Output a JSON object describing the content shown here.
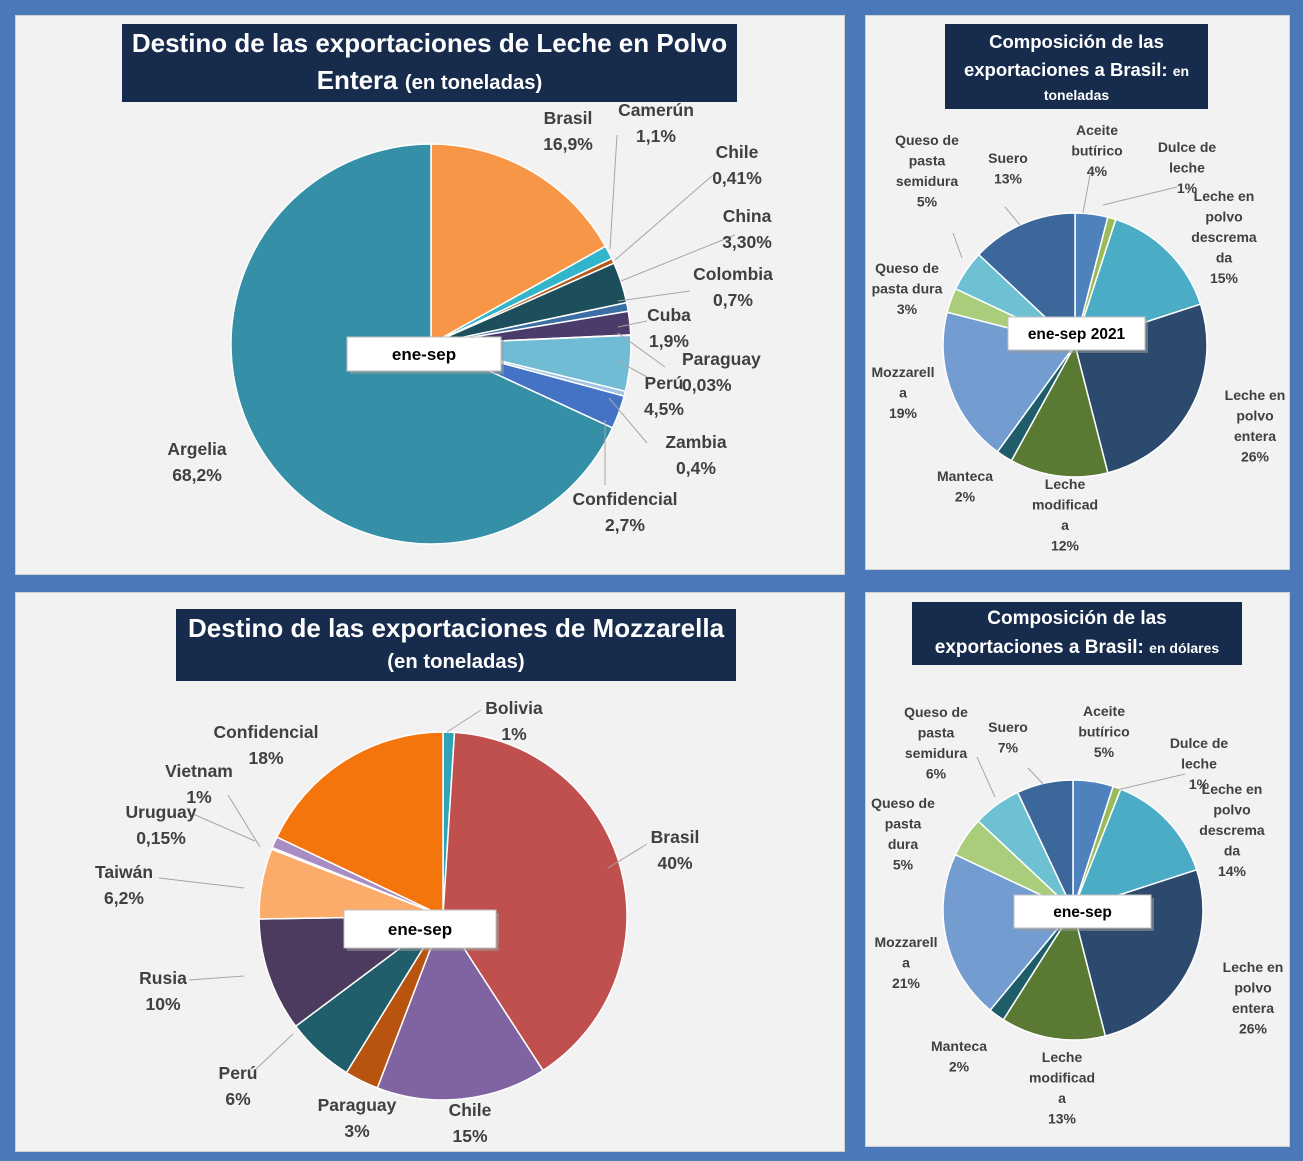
{
  "colors": {
    "frame": "#4a78b8",
    "panel": "#f2f2f2",
    "title_bg": "#172b4d",
    "label_text": "#404040"
  },
  "chart_data": [
    {
      "id": "leche_polvo",
      "type": "pie",
      "title": "Destino de las exportaciones de Leche en Polvo Entera",
      "title_main_1": "Destino de las exportaciones de Leche en Polvo",
      "title_main_2": "Entera",
      "title_small": "(en toneladas)",
      "period_label": "ene-sep",
      "slices": [
        {
          "name": "Brasil",
          "value_label": "16,9%",
          "value": 16.9,
          "color": "#f79646"
        },
        {
          "name": "Camerún",
          "value_label": "1,1%",
          "value": 1.1,
          "color": "#31b6c9"
        },
        {
          "name": "Chile",
          "value_label": "0,41%",
          "value": 0.41,
          "color": "#b35a1a"
        },
        {
          "name": "China",
          "value_label": "3,30%",
          "value": 3.3,
          "color": "#1d4e5c"
        },
        {
          "name": "Colombia",
          "value_label": "0,7%",
          "value": 0.7,
          "color": "#3a6ea5"
        },
        {
          "name": "Cuba",
          "value_label": "1,9%",
          "value": 1.9,
          "color": "#4b3b6a"
        },
        {
          "name": "Paraguay",
          "value_label": "0,03%",
          "value": 0.03,
          "color": "#7d5e9e"
        },
        {
          "name": "Perú",
          "value_label": "4,5%",
          "value": 4.5,
          "color": "#6fbcd4"
        },
        {
          "name": "Zambia",
          "value_label": "0,4%",
          "value": 0.4,
          "color": "#9dc3e6"
        },
        {
          "name": "Confidencial",
          "value_label": "2,7%",
          "value": 2.7,
          "color": "#4472c4"
        },
        {
          "name": "Argelia",
          "value_label": "68,2%",
          "value": 68.2,
          "color": "#3590a7"
        }
      ]
    },
    {
      "id": "brasil_ton",
      "type": "pie",
      "title": "Composición de las exportaciones a Brasil: en toneladas",
      "title_main_1": "Composición  de las",
      "title_main_2": "exportaciones  a Brasil:",
      "title_small_inline": "en",
      "title_small": "toneladas",
      "period_label": "ene-sep 2021",
      "slices": [
        {
          "lines": [
            "Aceite",
            "butírico",
            "4%"
          ],
          "value": 4,
          "color": "#4f81bd"
        },
        {
          "lines": [
            "Dulce de",
            "leche",
            "1%"
          ],
          "value": 1,
          "color": "#9bbb59"
        },
        {
          "lines": [
            "Leche en",
            "polvo",
            "descrema",
            "da",
            "15%"
          ],
          "value": 15,
          "color": "#4bacc6"
        },
        {
          "lines": [
            "Leche en",
            "polvo",
            "entera",
            "26%"
          ],
          "value": 26,
          "color": "#2c4a6e"
        },
        {
          "lines": [
            "Leche",
            "modificad",
            "a",
            "12%"
          ],
          "value": 12,
          "color": "#5a7a33"
        },
        {
          "lines": [
            "Manteca",
            "2%"
          ],
          "value": 2,
          "color": "#1f5d6b"
        },
        {
          "lines": [
            "Mozzarell",
            "a",
            "19%"
          ],
          "value": 19,
          "color": "#739cd0"
        },
        {
          "lines": [
            "Queso de",
            "pasta dura",
            "3%"
          ],
          "value": 3,
          "color": "#a9cd7b"
        },
        {
          "lines": [
            "Queso de",
            "pasta",
            "semidura",
            "5%"
          ],
          "value": 5,
          "color": "#6dc1d3"
        },
        {
          "lines": [
            "Suero",
            "13%"
          ],
          "value": 13,
          "color": "#3b679b"
        }
      ]
    },
    {
      "id": "mozzarella",
      "type": "pie",
      "title": "Destino de las exportaciones de Mozzarella",
      "title_main_1": "Destino de las exportaciones de Mozzarella",
      "title_small": "(en toneladas)",
      "period_label": "ene-sep",
      "slices": [
        {
          "name": "Bolivia",
          "value_label": "1%",
          "value": 1,
          "color": "#31a3b8"
        },
        {
          "name": "Brasil",
          "value_label": "40%",
          "value": 40,
          "color": "#c0504d"
        },
        {
          "name": "Chile",
          "value_label": "15%",
          "value": 15,
          "color": "#8064a2"
        },
        {
          "name": "Paraguay",
          "value_label": "3%",
          "value": 3,
          "color": "#b85410"
        },
        {
          "name": "Perú",
          "value_label": "6%",
          "value": 6,
          "color": "#215e6c"
        },
        {
          "name": "Rusia",
          "value_label": "10%",
          "value": 10,
          "color": "#4c3a5f"
        },
        {
          "name": "Taiwán",
          "value_label": "6,2%",
          "value": 6.2,
          "color": "#fbac6a"
        },
        {
          "name": "Uruguay",
          "value_label": "0,15%",
          "value": 0.15,
          "color": "#cccccc"
        },
        {
          "name": "Vietnam",
          "value_label": "1%",
          "value": 1,
          "color": "#a88cc4"
        },
        {
          "name": "Confidencial",
          "value_label": "18%",
          "value": 18,
          "color": "#f5750d"
        }
      ]
    },
    {
      "id": "brasil_usd",
      "type": "pie",
      "title": "Composición de las exportaciones a Brasil: en dólares",
      "title_main_1": "Composición  de las",
      "title_main_2": "exportaciones  a Brasil:",
      "title_small_inline": "en dólares",
      "period_label": "ene-sep",
      "slices": [
        {
          "lines": [
            "Aceite",
            "butírico",
            "5%"
          ],
          "value": 5,
          "color": "#4f81bd"
        },
        {
          "lines": [
            "Dulce de",
            "leche",
            "1%"
          ],
          "value": 1,
          "color": "#9bbb59"
        },
        {
          "lines": [
            "Leche en",
            "polvo",
            "descrema",
            "da",
            "14%"
          ],
          "value": 14,
          "color": "#4bacc6"
        },
        {
          "lines": [
            "Leche en",
            "polvo",
            "entera",
            "26%"
          ],
          "value": 26,
          "color": "#2c4a6e"
        },
        {
          "lines": [
            "Leche",
            "modificad",
            "a",
            "13%"
          ],
          "value": 13,
          "color": "#5a7a33"
        },
        {
          "lines": [
            "Manteca",
            "2%"
          ],
          "value": 2,
          "color": "#1f5d6b"
        },
        {
          "lines": [
            "Mozzarell",
            "a",
            "21%"
          ],
          "value": 21,
          "color": "#739cd0"
        },
        {
          "lines": [
            "Queso de",
            "pasta",
            "dura",
            "5%"
          ],
          "value": 5,
          "color": "#a9cd7b"
        },
        {
          "lines": [
            "Queso de",
            "pasta",
            "semidura",
            "6%"
          ],
          "value": 6,
          "color": "#6dc1d3"
        },
        {
          "lines": [
            "Suero",
            "7%"
          ],
          "value": 7,
          "color": "#3b679b"
        }
      ]
    }
  ]
}
